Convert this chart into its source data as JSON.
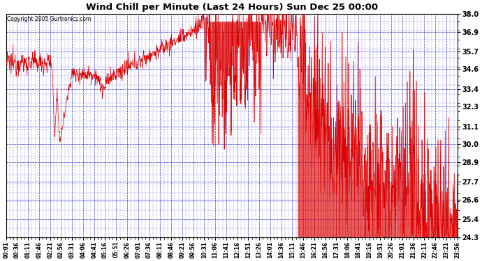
{
  "title": "Wind Chill per Minute (Last 24 Hours) Sun Dec 25 00:00",
  "copyright": "Copyright 2005 Gurtronics.com",
  "yticks": [
    24.3,
    25.4,
    26.6,
    27.7,
    28.9,
    30.0,
    31.1,
    32.3,
    33.4,
    34.6,
    35.7,
    36.9,
    38.0
  ],
  "ymin": 24.3,
  "ymax": 38.0,
  "line_color": "#dd0000",
  "bg_color": "#ffffff",
  "grid_color": "#0000cc",
  "title_color": "#000000",
  "copyright_color": "#000000",
  "xtick_labels": [
    "00:01",
    "00:36",
    "01:11",
    "01:46",
    "02:21",
    "02:56",
    "03:31",
    "04:06",
    "04:41",
    "05:16",
    "05:51",
    "06:26",
    "07:01",
    "07:36",
    "08:11",
    "08:46",
    "09:21",
    "09:56",
    "10:31",
    "11:06",
    "11:41",
    "12:16",
    "12:51",
    "13:26",
    "14:01",
    "14:36",
    "15:11",
    "15:46",
    "16:21",
    "16:56",
    "17:31",
    "18:06",
    "18:41",
    "19:16",
    "19:51",
    "20:26",
    "21:01",
    "21:36",
    "22:11",
    "22:46",
    "23:21",
    "23:56"
  ],
  "num_points": 1440,
  "figsize": [
    6.9,
    3.75
  ],
  "dpi": 100
}
